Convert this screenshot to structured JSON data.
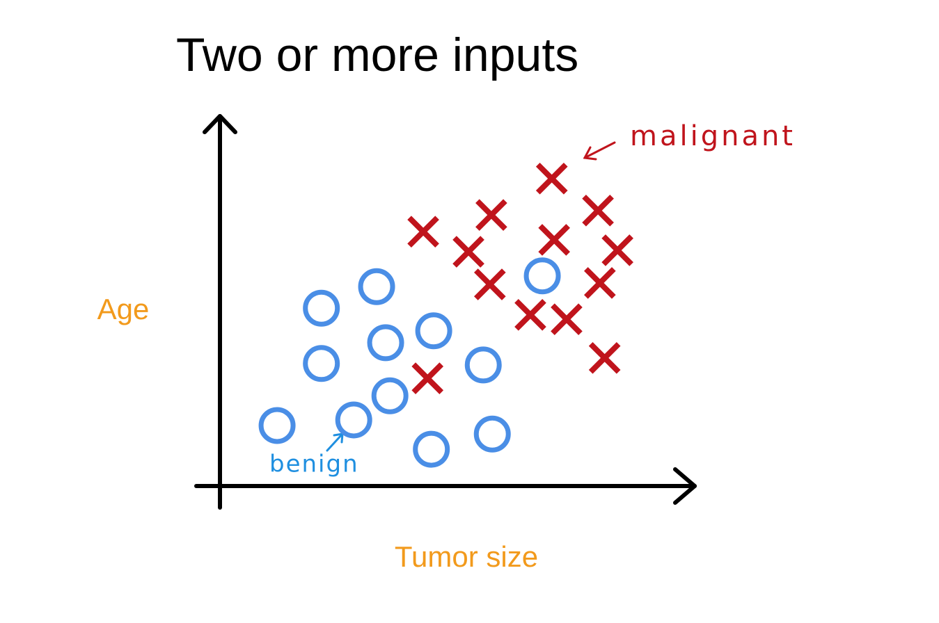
{
  "chart_data": {
    "type": "scatter",
    "title": "Two or more inputs",
    "x_label": "Tumor size",
    "y_label": "Age",
    "xlim": [
      0,
      100
    ],
    "ylim": [
      0,
      100
    ],
    "series": [
      {
        "name": "benign",
        "color": "#4a8ee6",
        "marker": "circle",
        "x": [
          12.0,
          21.3,
          21.3,
          32.9,
          34.8,
          28.1,
          35.7,
          44.9,
          55.3,
          44.4,
          57.2,
          67.7
        ],
        "values": [
          16.3,
          47.9,
          33.0,
          53.7,
          38.6,
          17.8,
          24.3,
          41.8,
          32.6,
          9.9,
          14.0,
          56.6
        ]
      },
      {
        "name": "malignant",
        "color": "#c0141c",
        "marker": "x",
        "x": [
          42.7,
          57.0,
          69.7,
          79.4,
          52.2,
          70.2,
          83.5,
          56.7,
          79.8,
          65.2,
          72.8,
          80.8,
          43.6
        ],
        "values": [
          68.5,
          73.0,
          82.8,
          74.2,
          63.1,
          66.3,
          63.5,
          54.3,
          54.7,
          46.1,
          44.9,
          34.5,
          29.0
        ]
      }
    ]
  }
}
